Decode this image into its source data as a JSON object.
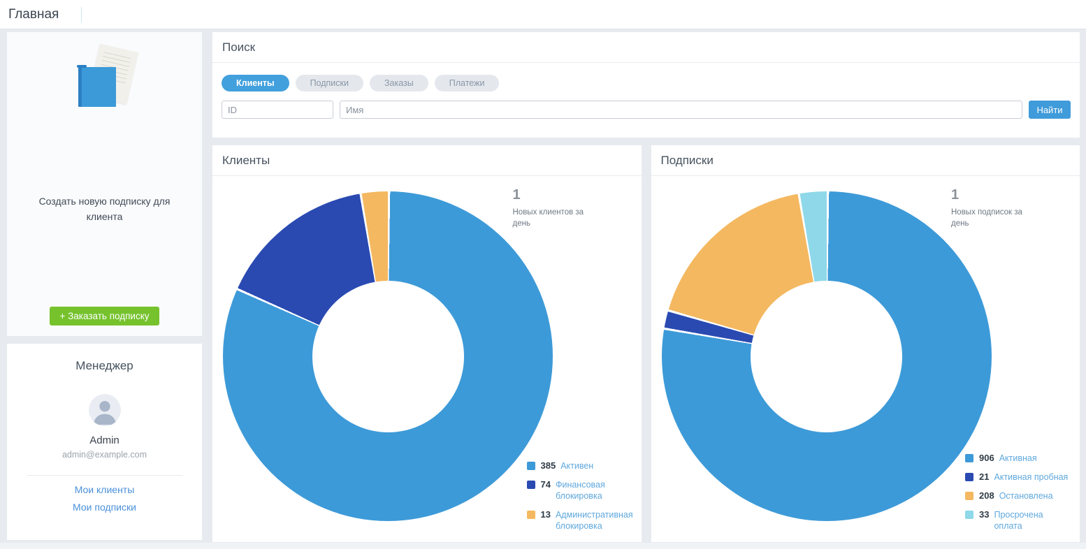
{
  "page_title": "Главная",
  "sidebar": {
    "create_card": {
      "text": "Создать новую подписку для клиента",
      "button_label": "+ Заказать подписку"
    },
    "manager_card": {
      "title": "Менеджер",
      "name": "Admin",
      "email": "admin@example.com",
      "links": [
        {
          "label": "Мои клиенты"
        },
        {
          "label": "Мои подписки"
        }
      ]
    }
  },
  "search": {
    "title": "Поиск",
    "tabs": [
      {
        "label": "Клиенты",
        "active": true
      },
      {
        "label": "Подписки",
        "active": false
      },
      {
        "label": "Заказы",
        "active": false
      },
      {
        "label": "Платежи",
        "active": false
      }
    ],
    "id_placeholder": "ID",
    "name_placeholder": "Имя",
    "submit_label": "Найти"
  },
  "colors": {
    "accent_blue": "#42a0dd",
    "green_button": "#76c22d",
    "legend_label_blue": "#5fa8dc",
    "counter_gray": "#8b9299"
  },
  "chart_data": [
    {
      "type": "pie",
      "panel_title": "Клиенты",
      "counter_value": "1",
      "counter_label": "Новых клиентов за день",
      "inner_radius_pct": 46,
      "legend_position": "bottom-right",
      "series": [
        {
          "label": "Активен",
          "value": 385,
          "color": "#3d9ad8"
        },
        {
          "label": "Финансовая блокировка",
          "value": 74,
          "color": "#2a4ab2"
        },
        {
          "label": "Административная блокировка",
          "value": 13,
          "color": "#f4b860"
        }
      ]
    },
    {
      "type": "pie",
      "panel_title": "Подписки",
      "counter_value": "1",
      "counter_label": "Новых подписок за день",
      "inner_radius_pct": 46,
      "legend_position": "bottom-right",
      "series": [
        {
          "label": "Активная",
          "value": 906,
          "color": "#3d9ad8"
        },
        {
          "label": "Активная пробная",
          "value": 21,
          "color": "#2a4ab2"
        },
        {
          "label": "Остановлена",
          "value": 208,
          "color": "#f4b860"
        },
        {
          "label": "Просрочена оплата",
          "value": 33,
          "color": "#8ed8e9"
        }
      ]
    }
  ]
}
